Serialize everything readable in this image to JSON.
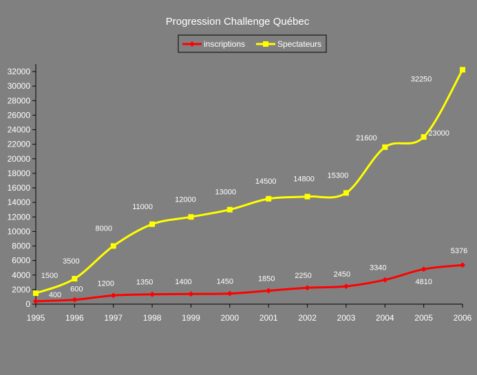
{
  "chart_data": {
    "type": "line",
    "title": "Progression Challenge Québec",
    "xlabel": "",
    "ylabel": "",
    "x": [
      "1995",
      "1996",
      "1997",
      "1998",
      "1999",
      "2000",
      "2001",
      "2002",
      "2003",
      "2004",
      "2005",
      "2006"
    ],
    "ylim": [
      0,
      32000
    ],
    "yticks": [
      0,
      2000,
      4000,
      6000,
      8000,
      10000,
      12000,
      14000,
      16000,
      18000,
      20000,
      22000,
      24000,
      26000,
      28000,
      30000,
      32000
    ],
    "grid": false,
    "legend_position": "top-center",
    "series": [
      {
        "name": "inscriptions",
        "color": "#FF0000",
        "marker": "diamond",
        "values": [
          400,
          600,
          1200,
          1350,
          1400,
          1450,
          1850,
          2250,
          2450,
          3340,
          4810,
          5376
        ],
        "labels": [
          "400",
          "600",
          "1200",
          "1350",
          "1400",
          "1450",
          "1850",
          "2250",
          "2450",
          "3340",
          "4810",
          "5376"
        ]
      },
      {
        "name": "Spectateurs",
        "color": "#FFFF00",
        "marker": "square",
        "values": [
          1500,
          3500,
          8000,
          11000,
          12000,
          13000,
          14500,
          14800,
          15300,
          21600,
          23000,
          32250
        ],
        "labels": [
          "1500",
          "3500",
          "8000",
          "11000",
          "12000",
          "13000",
          "14500",
          "14800",
          "15300",
          "21600",
          "23000",
          "32250"
        ]
      }
    ]
  }
}
